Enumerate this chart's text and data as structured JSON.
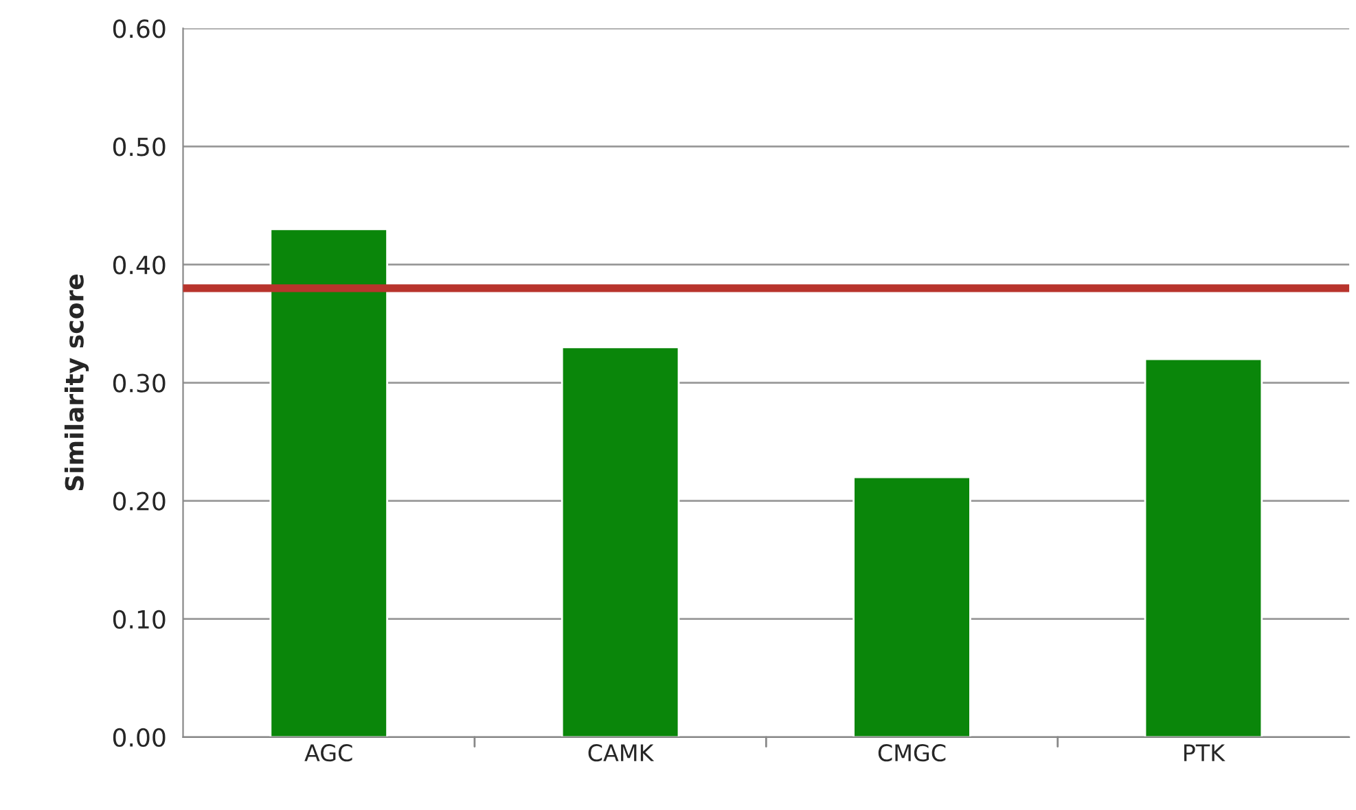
{
  "chart_data": {
    "type": "bar",
    "ylabel": "Similarity score",
    "categories": [
      "AGC",
      "CAMK",
      "CMGC",
      "PTK"
    ],
    "values": [
      0.43,
      0.33,
      0.22,
      0.32
    ],
    "color": "#0a860a",
    "ylim": [
      0,
      0.6
    ],
    "yticks": [
      {
        "value": 0,
        "label": "0.00"
      },
      {
        "value": 0.1,
        "label": "0.10"
      },
      {
        "value": 0.2,
        "label": "0.20"
      },
      {
        "value": 0.3,
        "label": "0.30"
      },
      {
        "value": 0.4,
        "label": "0.40"
      },
      {
        "value": 0.5,
        "label": "0.50"
      },
      {
        "value": 0.6,
        "label": "0.60"
      }
    ],
    "grid": "y",
    "legend": false,
    "ref_lines": [
      {
        "axis": "y",
        "value": 0.38,
        "color": "#b8342c"
      }
    ]
  }
}
